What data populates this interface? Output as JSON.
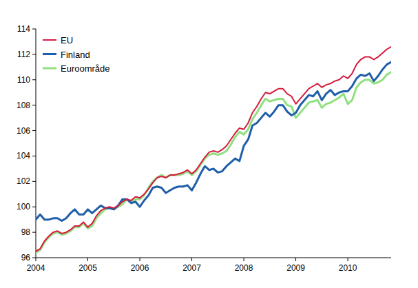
{
  "chart_data": {
    "type": "line",
    "categories": [
      "2004",
      null,
      null,
      null,
      null,
      null,
      null,
      null,
      null,
      null,
      null,
      null,
      "2005",
      null,
      null,
      null,
      null,
      null,
      null,
      null,
      null,
      null,
      null,
      null,
      "2006",
      null,
      null,
      null,
      null,
      null,
      null,
      null,
      null,
      null,
      null,
      null,
      "2007",
      null,
      null,
      null,
      null,
      null,
      null,
      null,
      null,
      null,
      null,
      null,
      "2008",
      null,
      null,
      null,
      null,
      null,
      null,
      null,
      null,
      null,
      null,
      null,
      "2009",
      null,
      null,
      null,
      null,
      null,
      null,
      null,
      null,
      null,
      null,
      null,
      "2010",
      null,
      null,
      null,
      null,
      null,
      null,
      null,
      null,
      null,
      null
    ],
    "series": [
      {
        "name": "EU",
        "color": "#d7193d",
        "values": [
          96.5,
          96.7,
          97.3,
          97.7,
          98.0,
          98.1,
          97.9,
          98.0,
          98.2,
          98.5,
          98.5,
          98.8,
          98.4,
          98.7,
          99.3,
          99.7,
          99.9,
          100.0,
          99.9,
          100.1,
          100.4,
          100.6,
          100.5,
          100.8,
          100.7,
          101.0,
          101.4,
          101.9,
          102.3,
          102.4,
          102.3,
          102.5,
          102.5,
          102.6,
          102.7,
          102.9,
          102.6,
          102.9,
          103.4,
          103.9,
          104.3,
          104.4,
          104.3,
          104.5,
          104.8,
          105.3,
          105.8,
          106.2,
          106.1,
          106.6,
          107.4,
          107.9,
          108.5,
          109.0,
          108.9,
          109.1,
          109.3,
          109.3,
          108.9,
          108.7,
          108.1,
          108.5,
          108.9,
          109.3,
          109.5,
          109.7,
          109.4,
          109.6,
          109.7,
          109.9,
          110.0,
          110.3,
          110.1,
          110.5,
          111.2,
          111.6,
          111.8,
          111.8,
          111.6,
          111.8,
          112.1,
          112.4,
          112.6
        ]
      },
      {
        "name": "Finland",
        "color": "#1f5ea8",
        "values": [
          99.0,
          99.4,
          99.0,
          99.0,
          99.1,
          99.1,
          98.9,
          99.1,
          99.5,
          99.8,
          99.4,
          99.4,
          99.8,
          99.5,
          99.8,
          100.1,
          99.9,
          99.9,
          99.8,
          100.1,
          100.6,
          100.6,
          100.3,
          100.4,
          100.0,
          100.5,
          100.9,
          101.5,
          101.6,
          101.5,
          101.1,
          101.3,
          101.5,
          101.6,
          101.6,
          101.7,
          101.3,
          101.9,
          102.6,
          103.2,
          102.9,
          103.0,
          102.7,
          102.8,
          103.2,
          103.5,
          103.8,
          103.6,
          104.8,
          105.3,
          106.4,
          106.6,
          107.0,
          107.4,
          107.1,
          107.5,
          108.0,
          108.0,
          107.5,
          107.2,
          107.4,
          108.0,
          108.4,
          108.8,
          108.7,
          109.1,
          108.4,
          108.9,
          109.2,
          108.8,
          109.0,
          109.1,
          109.1,
          109.5,
          110.1,
          110.4,
          110.3,
          110.5,
          109.9,
          110.3,
          110.8,
          111.2,
          111.4
        ]
      },
      {
        "name": "Euroområde",
        "color": "#90e080",
        "values": [
          96.4,
          96.6,
          97.2,
          97.6,
          97.9,
          98.0,
          97.8,
          97.9,
          98.1,
          98.4,
          98.4,
          98.7,
          98.3,
          98.5,
          99.1,
          99.5,
          99.8,
          99.9,
          99.8,
          100.0,
          100.2,
          100.6,
          100.4,
          100.6,
          100.6,
          100.9,
          101.5,
          102.0,
          102.3,
          102.5,
          102.3,
          102.5,
          102.5,
          102.5,
          102.6,
          102.8,
          102.5,
          102.8,
          103.3,
          103.8,
          104.1,
          104.2,
          104.1,
          104.2,
          104.4,
          104.9,
          105.5,
          105.9,
          105.7,
          106.1,
          106.9,
          107.4,
          108.0,
          108.5,
          108.3,
          108.4,
          108.5,
          108.5,
          108.0,
          107.9,
          107.0,
          107.4,
          107.8,
          108.2,
          108.3,
          108.4,
          107.8,
          108.1,
          108.2,
          108.4,
          108.6,
          108.9,
          108.1,
          108.4,
          109.4,
          109.8,
          110.0,
          110.0,
          109.7,
          109.8,
          110.0,
          110.4,
          110.6
        ]
      }
    ],
    "ylim": [
      96,
      114
    ],
    "yticks": [
      96,
      98,
      100,
      102,
      104,
      106,
      108,
      110,
      112,
      114
    ],
    "grid": false,
    "legend": "top-left"
  }
}
